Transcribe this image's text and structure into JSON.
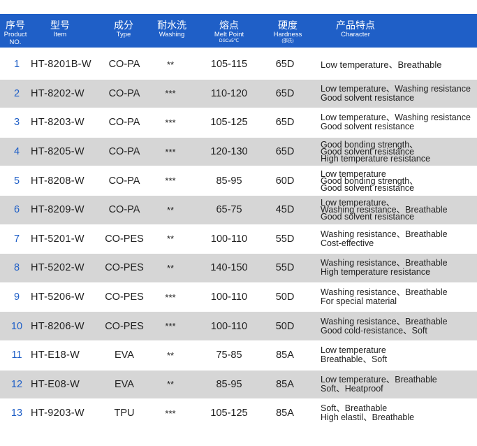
{
  "header": {
    "no_zh": "序号",
    "no_en1": "Product",
    "no_en2": "NO.",
    "item_zh": "型号",
    "item_en": "Item",
    "type_zh": "成分",
    "type_en": "Type",
    "wash_zh": "耐水洗",
    "wash_en": "Washing",
    "melt_zh": "熔点",
    "melt_en": "Melt Point",
    "melt_sub": "DSC±5℃",
    "hard_zh": "硬度",
    "hard_en": "Hardness",
    "hard_sub": "(邵氏)",
    "char_zh": "产品特点",
    "char_en": "Character"
  },
  "rows": [
    {
      "no": "1",
      "item": "HT-8201B-W",
      "type": "CO-PA",
      "wash": "**",
      "melt": "105-115",
      "hard": "65D",
      "char": [
        "Low temperature、Breathable"
      ]
    },
    {
      "no": "2",
      "item": "HT-8202-W",
      "type": "CO-PA",
      "wash": "***",
      "melt": "110-120",
      "hard": "65D",
      "char": [
        "Low temperature、Washing resistance",
        "Good solvent resistance"
      ]
    },
    {
      "no": "3",
      "item": "HT-8203-W",
      "type": "CO-PA",
      "wash": "***",
      "melt": "105-125",
      "hard": "65D",
      "char": [
        "Low temperature、Washing resistance",
        "Good solvent resistance"
      ]
    },
    {
      "no": "4",
      "item": "HT-8205-W",
      "type": "CO-PA",
      "wash": "***",
      "melt": "120-130",
      "hard": "65D",
      "char": [
        "Good bonding strength、",
        "Good solvent resistance",
        "High temperature resistance"
      ]
    },
    {
      "no": "5",
      "item": "HT-8208-W",
      "type": "CO-PA",
      "wash": "***",
      "melt": "85-95",
      "hard": "60D",
      "char": [
        "Low temperature",
        "Good bonding strength、",
        "Good solvent resistance"
      ]
    },
    {
      "no": "6",
      "item": "HT-8209-W",
      "type": "CO-PA",
      "wash": "**",
      "melt": "65-75",
      "hard": "45D",
      "char": [
        "Low temperature、",
        "Washing resistance、Breathable",
        "Good solvent resistance"
      ]
    },
    {
      "no": "7",
      "item": "HT-5201-W",
      "type": "CO-PES",
      "wash": "**",
      "melt": "100-110",
      "hard": "55D",
      "char": [
        "Washing resistance、Breathable",
        "Cost-effective"
      ]
    },
    {
      "no": "8",
      "item": "HT-5202-W",
      "type": "CO-PES",
      "wash": "**",
      "melt": "140-150",
      "hard": "55D",
      "char": [
        "Washing resistance、Breathable",
        "High temperature resistance"
      ]
    },
    {
      "no": "9",
      "item": "HT-5206-W",
      "type": "CO-PES",
      "wash": "***",
      "melt": "100-110",
      "hard": "50D",
      "char": [
        "Washing resistance、Breathable",
        "For special material"
      ]
    },
    {
      "no": "10",
      "item": "HT-8206-W",
      "type": "CO-PES",
      "wash": "***",
      "melt": "100-110",
      "hard": "50D",
      "char": [
        "Washing resistance、Breathable",
        "Good cold-resistance、Soft"
      ]
    },
    {
      "no": "11",
      "item": "HT-E18-W",
      "type": "EVA",
      "wash": "**",
      "melt": "75-85",
      "hard": "85A",
      "char": [
        "Low temperature",
        "Breathable、Soft"
      ]
    },
    {
      "no": "12",
      "item": "HT-E08-W",
      "type": "EVA",
      "wash": "**",
      "melt": "85-95",
      "hard": "85A",
      "char": [
        "Low temperature、Breathable",
        "Soft、Heatproof"
      ]
    },
    {
      "no": "13",
      "item": "HT-9203-W",
      "type": "TPU",
      "wash": "***",
      "melt": "105-125",
      "hard": "85A",
      "char": [
        "Soft、Breathable",
        "High elastil、Breathable"
      ]
    }
  ]
}
